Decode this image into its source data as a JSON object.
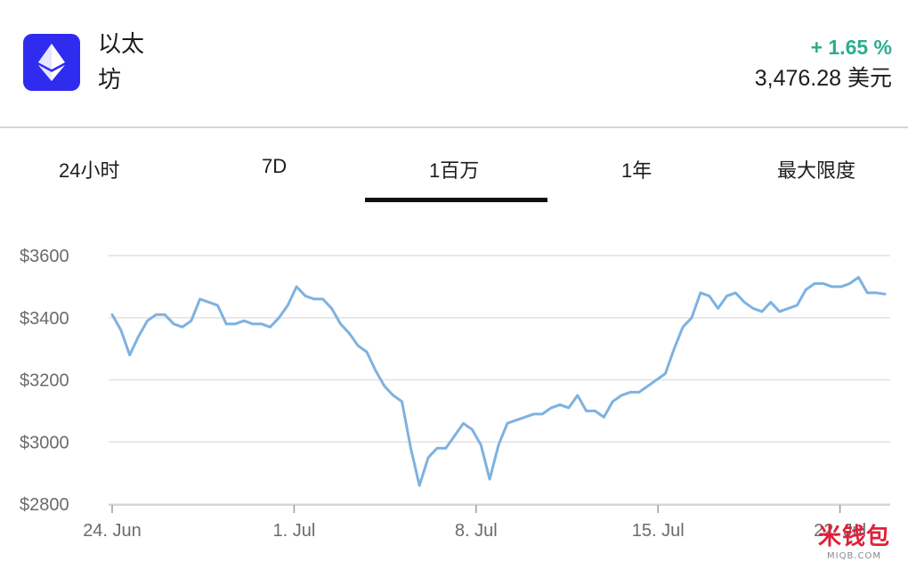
{
  "header": {
    "coin_name": "以太坊",
    "change": "+ 1.65 %",
    "price": "3,476.28 美元",
    "logo_icon": "ethereum-icon",
    "logo_bg": "#2f2cf0",
    "change_color": "#2dac8e"
  },
  "tabs": [
    {
      "label": "24小时"
    },
    {
      "label": "7D"
    },
    {
      "label": "1百万"
    },
    {
      "label": "1年"
    },
    {
      "label": "最大限度"
    }
  ],
  "active_tab": "1百万",
  "chart_data": {
    "type": "line",
    "line_color": "#7eb2e0",
    "grid": true,
    "ylim": [
      2800,
      3600
    ],
    "y_ticks": [
      "$3600",
      "$3400",
      "$3200",
      "$3000",
      "$2800"
    ],
    "x_ticks": [
      "24. Jun",
      "1. Jul",
      "8. Jul",
      "15. Jul",
      "22. Jul"
    ],
    "x": [
      "06-24",
      "06-24",
      "06-24",
      "06-25",
      "06-25",
      "06-25",
      "06-26",
      "06-26",
      "06-26",
      "06-27",
      "06-27",
      "06-27",
      "06-28",
      "06-28",
      "06-28",
      "06-29",
      "06-29",
      "06-29",
      "06-30",
      "06-30",
      "06-30",
      "07-01",
      "07-01",
      "07-01",
      "07-02",
      "07-02",
      "07-02",
      "07-03",
      "07-03",
      "07-03",
      "07-04",
      "07-04",
      "07-04",
      "07-05",
      "07-05",
      "07-05",
      "07-06",
      "07-06",
      "07-06",
      "07-07",
      "07-07",
      "07-07",
      "07-08",
      "07-08",
      "07-08",
      "07-09",
      "07-09",
      "07-09",
      "07-10",
      "07-10",
      "07-10",
      "07-11",
      "07-11",
      "07-11",
      "07-12",
      "07-12",
      "07-12",
      "07-13",
      "07-13",
      "07-13",
      "07-14",
      "07-14",
      "07-14",
      "07-15",
      "07-15",
      "07-15",
      "07-16",
      "07-16",
      "07-16",
      "07-17",
      "07-17",
      "07-17",
      "07-18",
      "07-18",
      "07-18",
      "07-19",
      "07-19",
      "07-19",
      "07-20",
      "07-20",
      "07-20",
      "07-21",
      "07-21",
      "07-21",
      "07-22",
      "07-22",
      "07-22",
      "07-23",
      "07-23"
    ],
    "values": [
      3410,
      3360,
      3280,
      3340,
      3390,
      3410,
      3410,
      3380,
      3370,
      3390,
      3460,
      3450,
      3440,
      3380,
      3380,
      3390,
      3380,
      3380,
      3370,
      3400,
      3440,
      3500,
      3470,
      3460,
      3460,
      3430,
      3380,
      3350,
      3310,
      3290,
      3230,
      3180,
      3150,
      3130,
      2980,
      2860,
      2950,
      2980,
      2980,
      3020,
      3060,
      3040,
      2990,
      2880,
      2990,
      3060,
      3070,
      3080,
      3090,
      3090,
      3110,
      3120,
      3110,
      3150,
      3100,
      3100,
      3080,
      3130,
      3150,
      3160,
      3160,
      3180,
      3200,
      3220,
      3300,
      3370,
      3400,
      3480,
      3470,
      3430,
      3470,
      3480,
      3450,
      3430,
      3420,
      3450,
      3420,
      3430,
      3440,
      3490,
      3510,
      3510,
      3500,
      3500,
      3510,
      3530,
      3480,
      3480,
      3476
    ]
  },
  "watermark": {
    "text": "米钱包",
    "subtext": "MIQB.COM"
  }
}
